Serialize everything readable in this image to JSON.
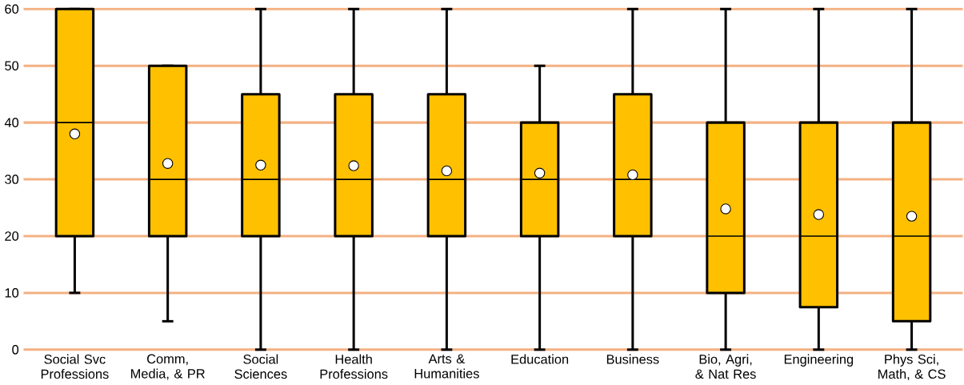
{
  "chart_data": {
    "type": "box",
    "categories": [
      "Social Svc Professions",
      "Comm, Media, & PR",
      "Social Sciences",
      "Health Professions",
      "Arts & Humanities",
      "Education",
      "Business",
      "Bio, Agri, & Nat Res",
      "Engineering",
      "Phys Sci, Math, & CS"
    ],
    "boxes": [
      {
        "low": 10,
        "q1": 20,
        "median": 40,
        "q3": 60,
        "high": 60,
        "mean": 38
      },
      {
        "low": 5,
        "q1": 20,
        "median": 30,
        "q3": 50,
        "high": 50,
        "mean": 32.8
      },
      {
        "low": 0,
        "q1": 20,
        "median": 30,
        "q3": 45,
        "high": 60,
        "mean": 32.5
      },
      {
        "low": 0,
        "q1": 20,
        "median": 30,
        "q3": 45,
        "high": 60,
        "mean": 32.4
      },
      {
        "low": 0,
        "q1": 20,
        "median": 30,
        "q3": 45,
        "high": 60,
        "mean": 31.5
      },
      {
        "low": 0,
        "q1": 20,
        "median": 30,
        "q3": 40,
        "high": 50,
        "mean": 31.1
      },
      {
        "low": 0,
        "q1": 20,
        "median": 30,
        "q3": 45,
        "high": 60,
        "mean": 30.8
      },
      {
        "low": 0,
        "q1": 10,
        "median": 20,
        "q3": 40,
        "high": 60,
        "mean": 24.8
      },
      {
        "low": 0,
        "q1": 7.5,
        "median": 20,
        "q3": 40,
        "high": 60,
        "mean": 23.8
      },
      {
        "low": 0,
        "q1": 5,
        "median": 20,
        "q3": 40,
        "high": 60,
        "mean": 23.5
      }
    ],
    "color": "#ffc000",
    "ylim": [
      0,
      60
    ],
    "yticks": [
      0,
      10,
      20,
      30,
      40,
      50,
      60
    ],
    "grid": "y"
  }
}
